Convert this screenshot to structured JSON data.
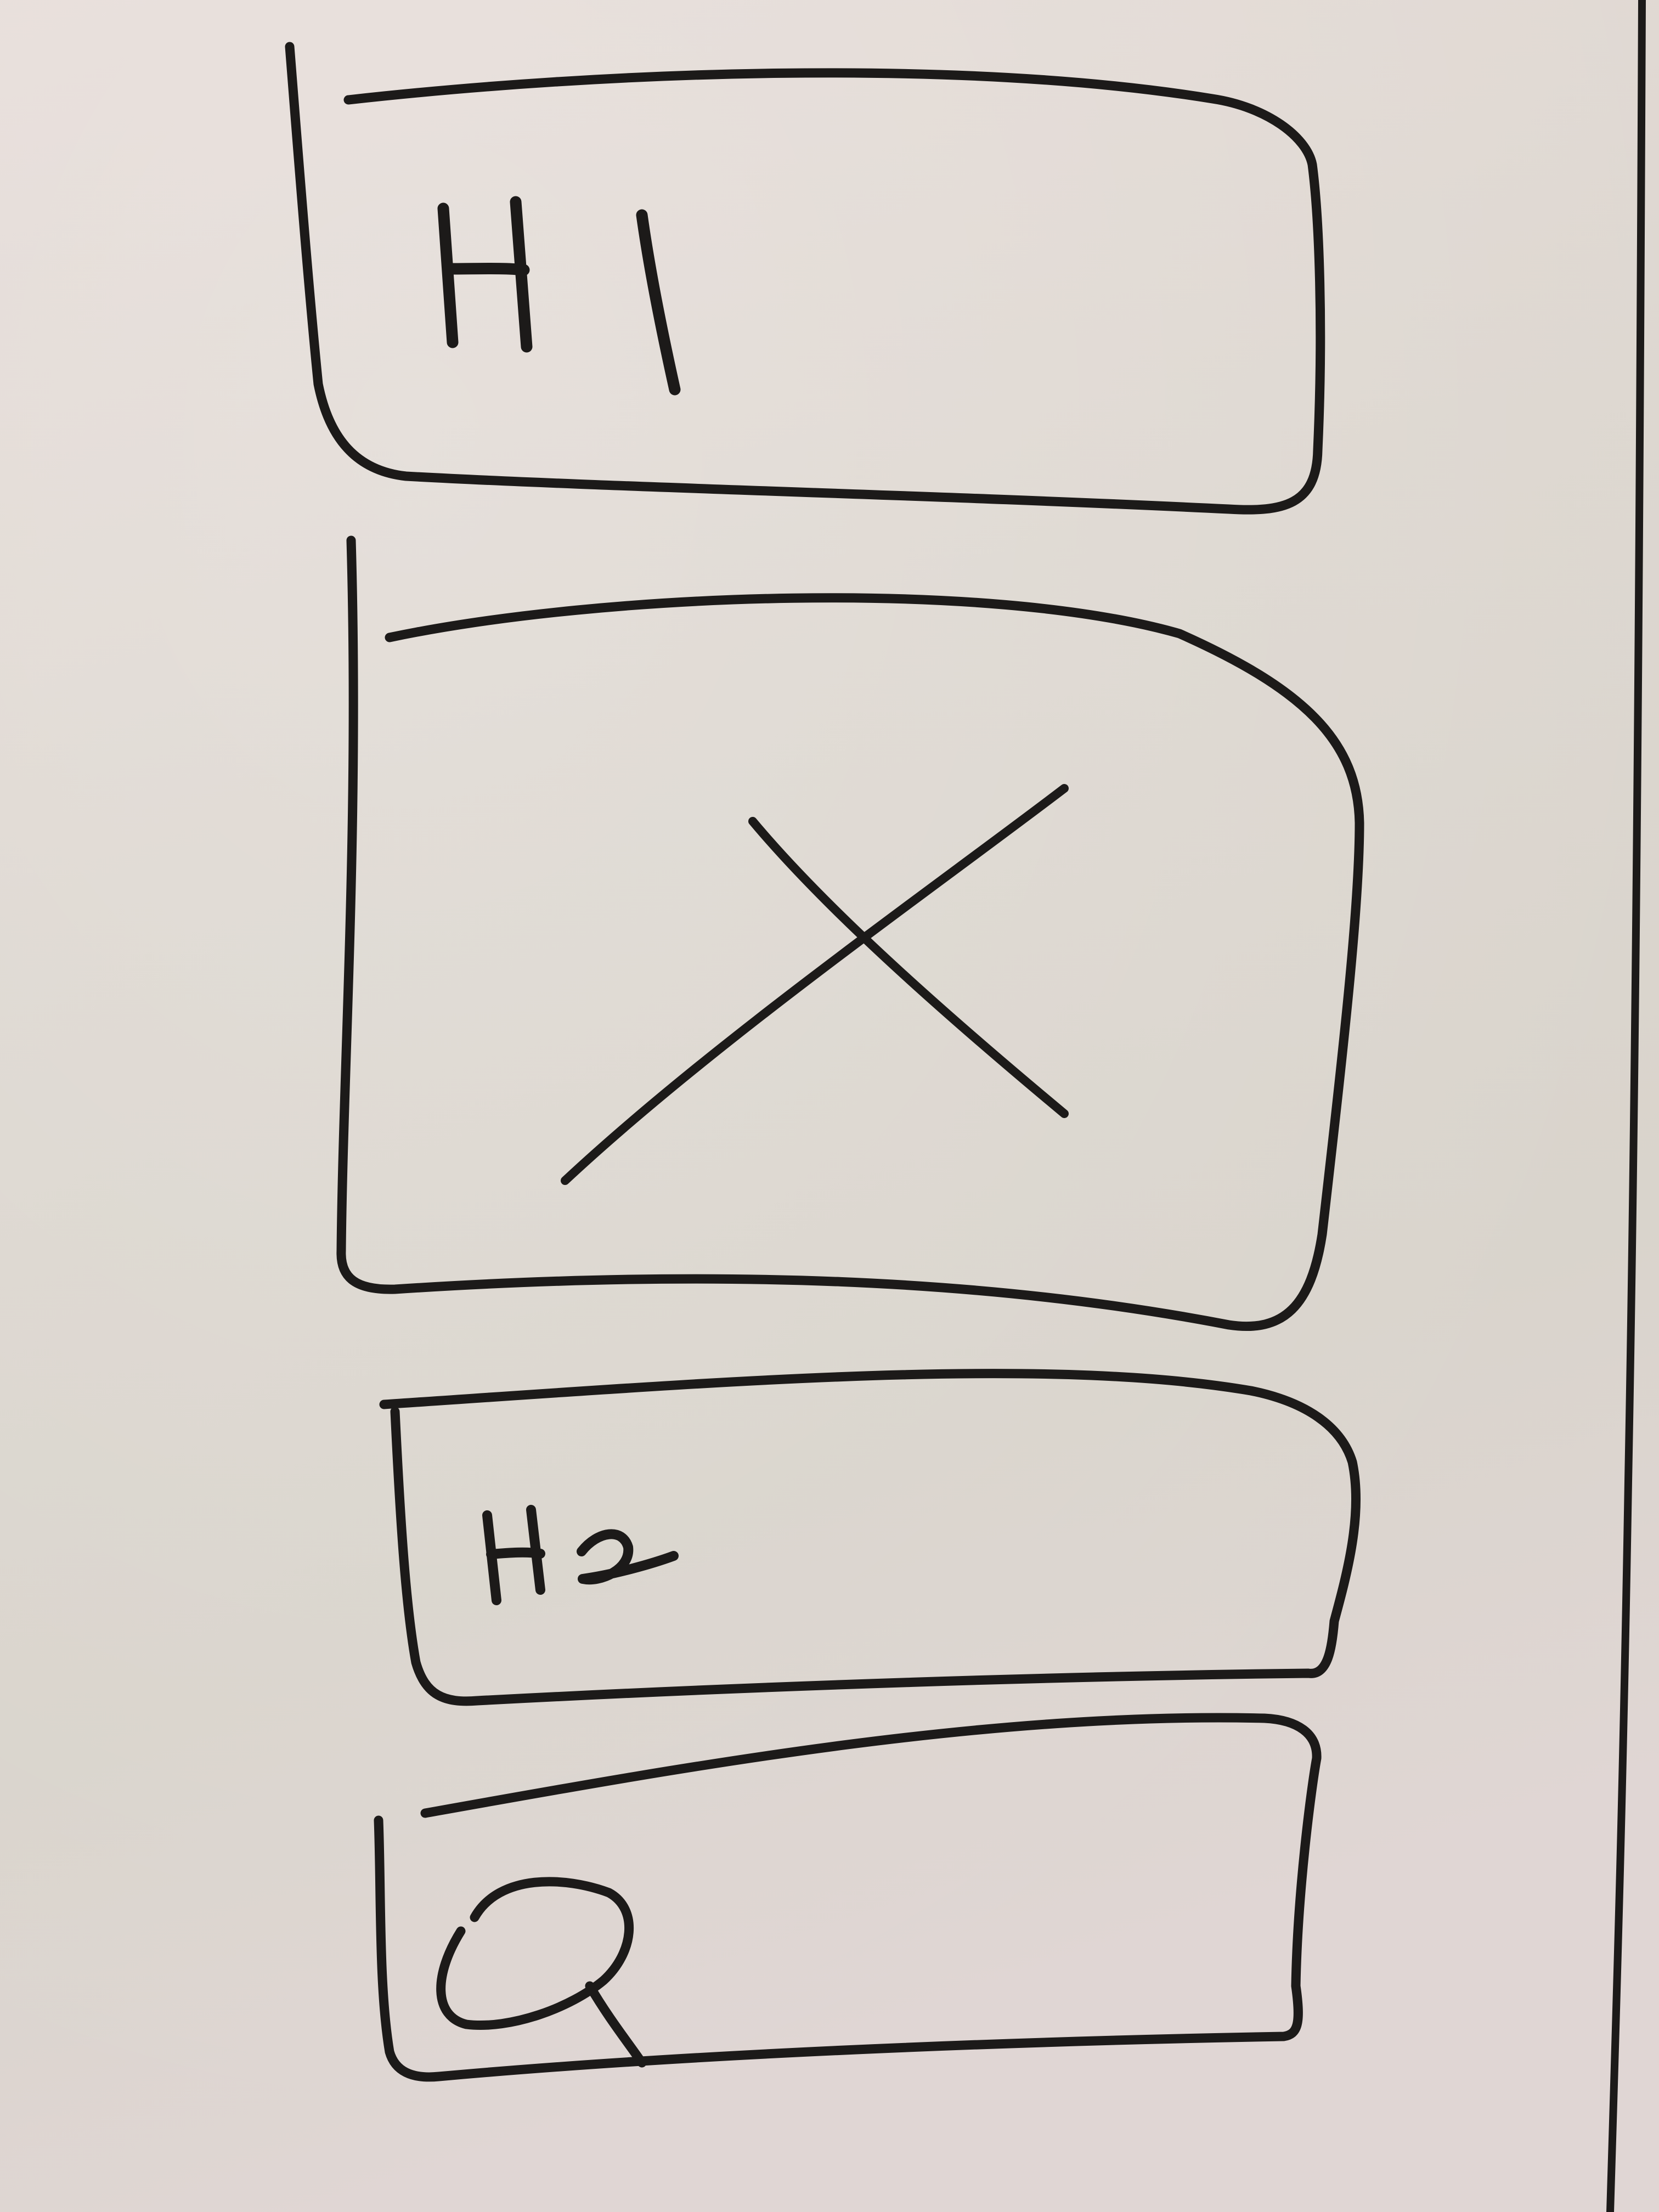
{
  "board": {
    "background_colors": [
      "#e6dcd8",
      "#ddd7d0",
      "#d9d4cc",
      "#e0d6d4"
    ],
    "ink_color": "#1c1a19"
  },
  "wireframe": {
    "blocks": [
      {
        "id": "h1",
        "label": "H1"
      },
      {
        "id": "image",
        "icon": "image-placeholder-x-icon"
      },
      {
        "id": "h2",
        "label": "H2"
      },
      {
        "id": "search",
        "icon": "search-icon"
      }
    ]
  }
}
